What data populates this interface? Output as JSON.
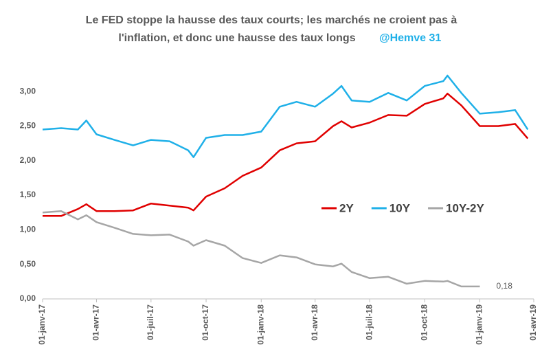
{
  "chart_data": {
    "type": "line",
    "title": [
      "Le FED stoppe la hausse des taux courts; les marchés ne croient pas à",
      "l'inflation, et donc une hausse des taux longs"
    ],
    "annotation": "@Hemve 31",
    "x": [
      "2017-01-01",
      "2017-02-01",
      "2017-03-01",
      "2017-03-15",
      "2017-04-01",
      "2017-05-01",
      "2017-06-01",
      "2017-07-01",
      "2017-08-01",
      "2017-09-01",
      "2017-09-10",
      "2017-10-01",
      "2017-11-01",
      "2017-12-01",
      "2018-01-01",
      "2018-02-01",
      "2018-03-01",
      "2018-04-01",
      "2018-05-01",
      "2018-05-15",
      "2018-06-01",
      "2018-07-01",
      "2018-08-01",
      "2018-09-01",
      "2018-10-01",
      "2018-11-01",
      "2018-11-08",
      "2018-12-01",
      "2019-01-01",
      "2019-02-01",
      "2019-03-01",
      "2019-03-22"
    ],
    "series": [
      {
        "name": "2Y",
        "color": "#e00000",
        "values": [
          1.2,
          1.2,
          1.3,
          1.37,
          1.27,
          1.27,
          1.28,
          1.38,
          1.35,
          1.32,
          1.28,
          1.48,
          1.6,
          1.78,
          1.9,
          2.15,
          2.25,
          2.28,
          2.5,
          2.57,
          2.48,
          2.55,
          2.66,
          2.65,
          2.82,
          2.9,
          2.97,
          2.8,
          2.5,
          2.5,
          2.53,
          2.32
        ]
      },
      {
        "name": "10Y",
        "color": "#1fb0e8",
        "values": [
          2.45,
          2.47,
          2.45,
          2.58,
          2.38,
          2.3,
          2.22,
          2.3,
          2.28,
          2.15,
          2.05,
          2.33,
          2.37,
          2.37,
          2.42,
          2.78,
          2.85,
          2.78,
          2.97,
          3.08,
          2.87,
          2.85,
          2.98,
          2.87,
          3.08,
          3.15,
          3.23,
          2.98,
          2.68,
          2.7,
          2.73,
          2.45
        ]
      },
      {
        "name": "10Y-2Y",
        "color": "#a6a6a6",
        "values": [
          1.25,
          1.27,
          1.15,
          1.21,
          1.11,
          1.03,
          0.94,
          0.92,
          0.93,
          0.83,
          0.77,
          0.85,
          0.77,
          0.59,
          0.52,
          0.63,
          0.6,
          0.5,
          0.47,
          0.51,
          0.39,
          0.3,
          0.32,
          0.22,
          0.26,
          0.25,
          0.26,
          0.18,
          0.18,
          null,
          null,
          null
        ],
        "value_labels": [
          null,
          null,
          null,
          null,
          null,
          null,
          null,
          null,
          null,
          null,
          null,
          null,
          null,
          null,
          null,
          null,
          null,
          null,
          null,
          null,
          null,
          null,
          null,
          null,
          null,
          null,
          null,
          null,
          "0,18",
          null,
          null,
          null
        ]
      }
    ],
    "xlim": [
      "2017-01-01",
      "2019-04-01"
    ],
    "xticks": [
      {
        "value": "2017-01-01",
        "label": "01-janv-17"
      },
      {
        "value": "2017-04-01",
        "label": "01-avr-17"
      },
      {
        "value": "2017-07-01",
        "label": "01-juil-17"
      },
      {
        "value": "2017-10-01",
        "label": "01-oct-17"
      },
      {
        "value": "2018-01-01",
        "label": "01-janv-18"
      },
      {
        "value": "2018-04-01",
        "label": "01-avr-18"
      },
      {
        "value": "2018-07-01",
        "label": "01-juil-18"
      },
      {
        "value": "2018-10-01",
        "label": "01-oct-18"
      },
      {
        "value": "2019-01-01",
        "label": "01-janv-19"
      },
      {
        "value": "2019-04-01",
        "label": "01-avr-19"
      }
    ],
    "ylim": [
      0,
      3.25
    ],
    "yticks": [
      {
        "value": 0,
        "label": "0,00"
      },
      {
        "value": 0.5,
        "label": "0,50"
      },
      {
        "value": 1,
        "label": "1,00"
      },
      {
        "value": 1.5,
        "label": "1,50"
      },
      {
        "value": 2,
        "label": "2,00"
      },
      {
        "value": 2.5,
        "label": "2,50"
      },
      {
        "value": 3,
        "label": "3,00"
      }
    ],
    "grid": false
  }
}
